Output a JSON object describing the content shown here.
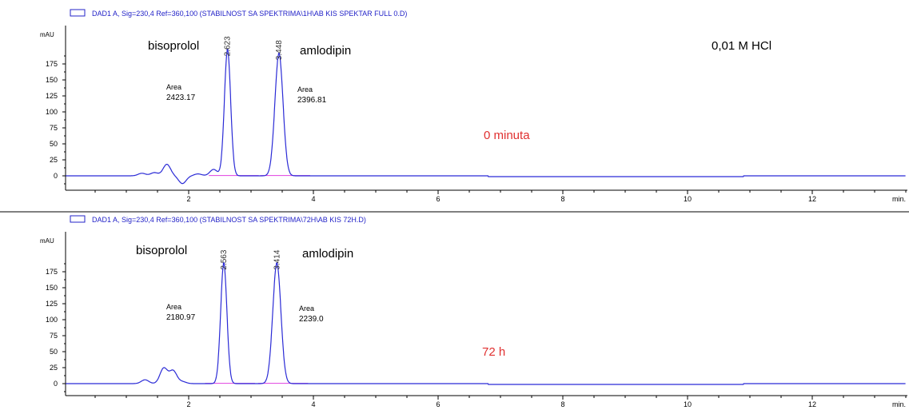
{
  "colors": {
    "trace": "#2b2bd6",
    "baseline_fit": "#e040e0",
    "axis": "#000000",
    "header_text": "#2323c8",
    "annotation_red": "#e03030"
  },
  "chart_data": [
    {
      "type": "line",
      "header": "DAD1 A, Sig=230,4 Ref=360,100 (STABILNOST SA SPEKTRIMA\\1H\\AB KIS SPEKTAR  FULL 0.D)",
      "ylabel": "mAU",
      "xlabel": "min",
      "ylim": [
        -20,
        200
      ],
      "xlim": [
        0,
        13.5
      ],
      "yticks": [
        0,
        25,
        50,
        75,
        100,
        125,
        150,
        175
      ],
      "xticks": [
        2,
        4,
        6,
        8,
        10,
        12
      ],
      "peaks": [
        {
          "rt_label": "2.623",
          "rt": 2.623,
          "height": 197,
          "width": 0.05,
          "area_label": "Area",
          "area_value": "2423.17"
        },
        {
          "rt_label": "3.448",
          "rt": 3.448,
          "height": 191,
          "width": 0.065,
          "area_label": "Area",
          "area_value": "2396.81"
        }
      ],
      "annotations": {
        "compound_1": "bisoprolol",
        "compound_2": "amlodipin",
        "medium": "0,01 M HCl",
        "timepoint": "0 minuta"
      },
      "minor_features": [
        {
          "x": 1.25,
          "y": 4
        },
        {
          "x": 1.45,
          "y": 5
        },
        {
          "x": 1.65,
          "y": 18
        },
        {
          "x": 1.9,
          "y": -12
        },
        {
          "x": 2.15,
          "y": 3
        },
        {
          "x": 2.4,
          "y": 10
        }
      ]
    },
    {
      "type": "line",
      "header": "DAD1 A, Sig=230,4 Ref=360,100 (STABILNOST SA SPEKTRIMA\\72H\\AB KIS 72H.D)",
      "ylabel": "mAU",
      "xlabel": "min",
      "ylim": [
        -20,
        200
      ],
      "xlim": [
        0,
        13.5
      ],
      "yticks": [
        0,
        25,
        50,
        75,
        100,
        125,
        150,
        175
      ],
      "xticks": [
        2,
        4,
        6,
        8,
        10,
        12
      ],
      "peaks": [
        {
          "rt_label": "2.563",
          "rt": 2.563,
          "height": 188,
          "width": 0.05,
          "area_label": "Area",
          "area_value": "2180.97"
        },
        {
          "rt_label": "3.414",
          "rt": 3.414,
          "height": 188,
          "width": 0.065,
          "area_label": "Area",
          "area_value": "2239.0"
        }
      ],
      "annotations": {
        "compound_1": "bisoprolol",
        "compound_2": "amlodipin",
        "timepoint": "72 h"
      },
      "minor_features": [
        {
          "x": 1.3,
          "y": 6
        },
        {
          "x": 1.6,
          "y": 24
        },
        {
          "x": 1.75,
          "y": 20
        },
        {
          "x": 1.9,
          "y": 3
        }
      ]
    }
  ]
}
